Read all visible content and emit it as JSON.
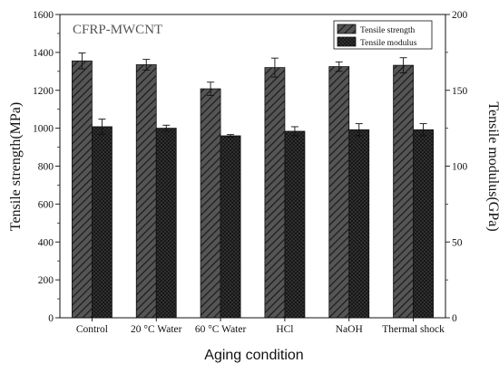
{
  "chart_data": {
    "type": "bar",
    "annotation": "CFRP-MWCNT",
    "xlabel": "Aging condition",
    "ylabel_left": "Tensile strength(MPa)",
    "ylabel_right": "Tensile modulus(GPa)",
    "categories": [
      "Control",
      "20 °C Water",
      "60 °C Water",
      "HCl",
      "NaOH",
      "Thermal shock"
    ],
    "ylim_left": [
      0,
      1600
    ],
    "yticks_left": [
      0,
      200,
      400,
      600,
      800,
      1000,
      1200,
      1400,
      1600
    ],
    "ylim_right": [
      0,
      200
    ],
    "yticks_right": [
      0,
      50,
      100,
      150,
      200
    ],
    "legend_position": "top-right",
    "grid": false,
    "series": [
      {
        "name": "Tensile strength",
        "axis": "left",
        "pattern": "diagonal-hatch",
        "values": [
          1355,
          1335,
          1208,
          1320,
          1325,
          1332
        ],
        "errors": [
          42,
          28,
          35,
          50,
          25,
          40
        ]
      },
      {
        "name": "Tensile modulus",
        "axis": "right",
        "pattern": "crosshatch",
        "values": [
          126,
          125,
          120,
          123,
          124,
          124
        ],
        "errors": [
          5,
          2,
          0.8,
          3,
          4,
          4
        ]
      }
    ],
    "colors": {
      "bar_fill": "#4d4d4d",
      "pattern_line": "#1a1a1a",
      "axis": "#111111"
    }
  }
}
